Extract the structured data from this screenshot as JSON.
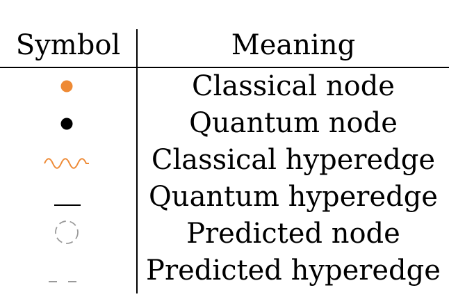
{
  "header": {
    "symbol": "Symbol",
    "meaning": "Meaning"
  },
  "colors": {
    "classical": "#ee8a35",
    "quantum": "#000000",
    "predicted": "#9a9a9a"
  },
  "rows": [
    {
      "icon": "orange-filled-dot-icon",
      "meaning": "Classical node"
    },
    {
      "icon": "black-filled-dot-icon",
      "meaning": "Quantum node"
    },
    {
      "icon": "orange-wavy-line-icon",
      "meaning": "Classical hyperedge"
    },
    {
      "icon": "black-solid-line-icon",
      "meaning": "Quantum hyperedge"
    },
    {
      "icon": "gray-dashed-circle-icon",
      "meaning": "Predicted node"
    },
    {
      "icon": "gray-dashed-line-icon",
      "meaning": "Predicted hyperedge"
    }
  ]
}
